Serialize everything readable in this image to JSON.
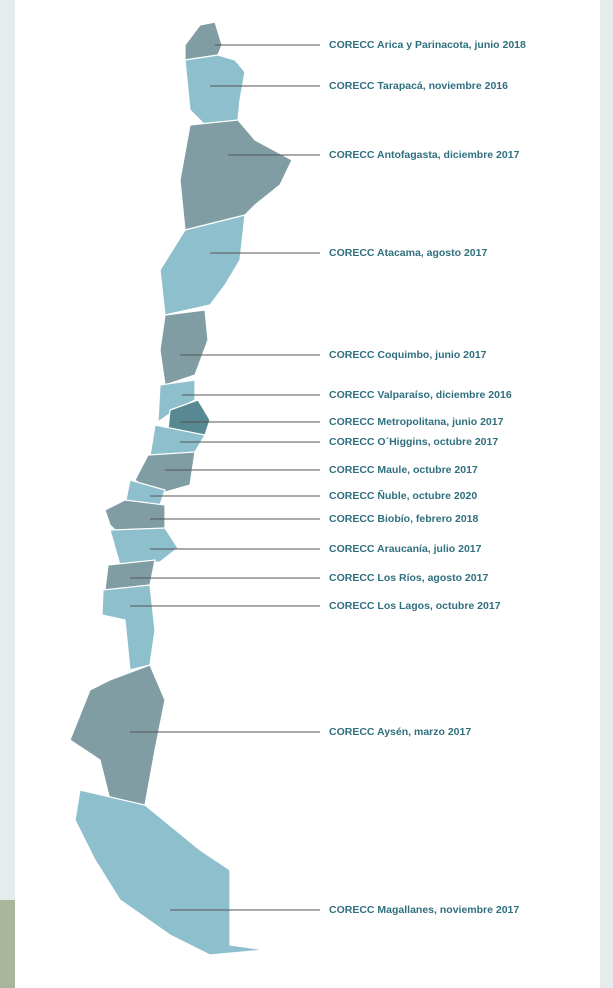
{
  "regions": [
    {
      "label": "CORECC Arica y Parinacota, junio 2018"
    },
    {
      "label": "CORECC Tarapacá, noviembre 2016"
    },
    {
      "label": "CORECC Antofagasta, diciembre 2017"
    },
    {
      "label": "CORECC Atacama, agosto 2017"
    },
    {
      "label": "CORECC Coquimbo, junio 2017"
    },
    {
      "label": "CORECC Valparaíso, diciembre 2016"
    },
    {
      "label": "CORECC Metropolitana, junio 2017"
    },
    {
      "label": "CORECC O´Higgins, octubre 2017"
    },
    {
      "label": "CORECC Maule, octubre 2017"
    },
    {
      "label": "CORECC Ñuble, octubre 2020"
    },
    {
      "label": "CORECC Biobío, febrero 2018"
    },
    {
      "label": "CORECC Araucanía, julio 2017"
    },
    {
      "label": "CORECC Los Ríos, agosto 2017"
    },
    {
      "label": "CORECC Los Lagos, octubre 2017"
    },
    {
      "label": "CORECC Aysén, marzo 2017"
    },
    {
      "label": "CORECC Magallanes, noviembre 2017"
    }
  ]
}
